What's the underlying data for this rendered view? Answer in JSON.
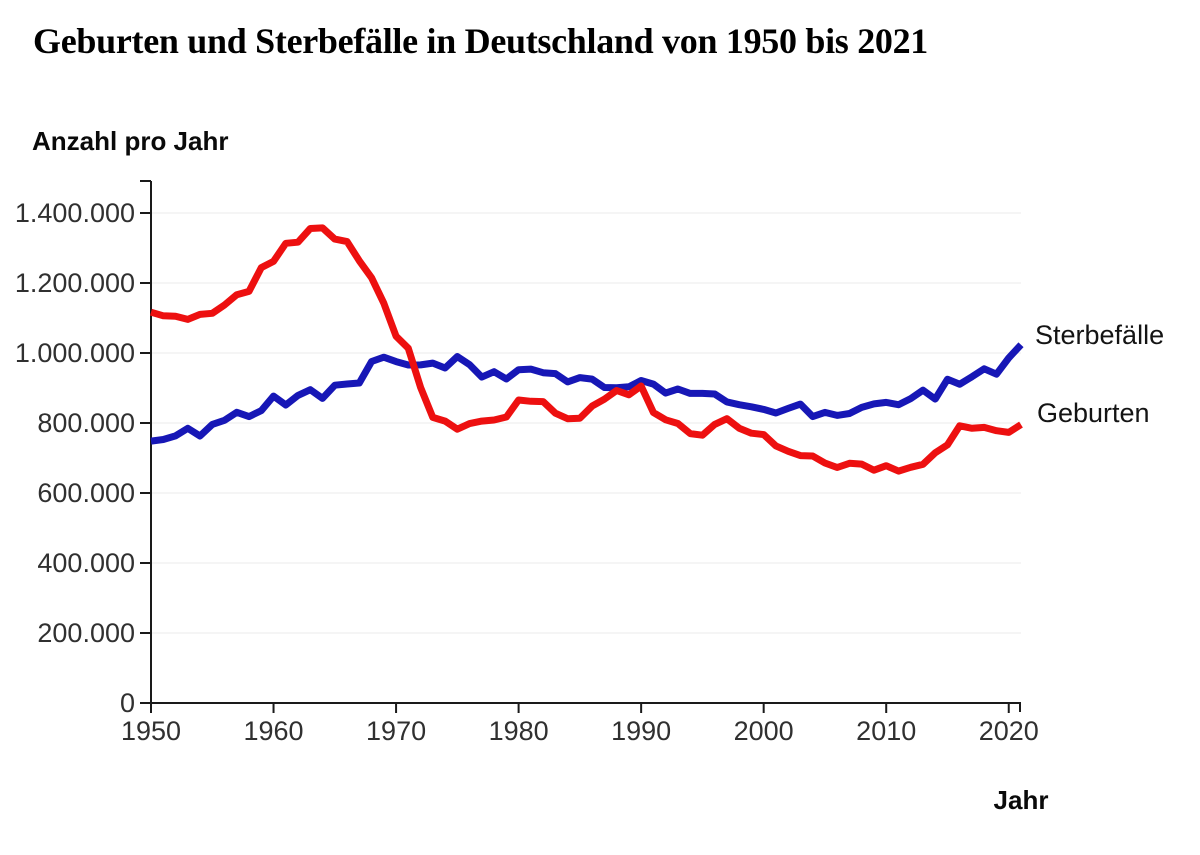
{
  "title": "Geburten und Sterbefälle in Deutschland von 1950 bis 2021",
  "colors": {
    "births": "#ED1010",
    "deaths": "#1717B6",
    "axis": "#1A1A1A",
    "grid": "#EBEBEB",
    "tick_text": "#303030",
    "text": "#000000"
  },
  "chart_data": {
    "type": "line",
    "title": "Geburten und Sterbefälle in Deutschland von 1950 bis 2021",
    "xlabel": "Jahr",
    "ylabel": "Anzahl pro Jahr",
    "xlim": [
      1950,
      2021
    ],
    "ylim": [
      0,
      1400000
    ],
    "grid": "horizontal",
    "legend_position": "labels-at-right-line-ends",
    "x_ticks": [
      {
        "value": 1950,
        "label": "1950"
      },
      {
        "value": 1960,
        "label": "1960"
      },
      {
        "value": 1970,
        "label": "1970"
      },
      {
        "value": 1980,
        "label": "1980"
      },
      {
        "value": 1990,
        "label": "1990"
      },
      {
        "value": 2000,
        "label": "2000"
      },
      {
        "value": 2010,
        "label": "2010"
      },
      {
        "value": 2020,
        "label": "2020"
      }
    ],
    "y_ticks": [
      {
        "value": 0,
        "label": "0"
      },
      {
        "value": 200000,
        "label": "200.000"
      },
      {
        "value": 400000,
        "label": "400.000"
      },
      {
        "value": 600000,
        "label": "600.000"
      },
      {
        "value": 800000,
        "label": "800.000"
      },
      {
        "value": 1000000,
        "label": "1.000.000"
      },
      {
        "value": 1200000,
        "label": "1.200.000"
      },
      {
        "value": 1400000,
        "label": "1.400.000"
      }
    ],
    "x": [
      1950,
      1951,
      1952,
      1953,
      1954,
      1955,
      1956,
      1957,
      1958,
      1959,
      1960,
      1961,
      1962,
      1963,
      1964,
      1965,
      1966,
      1967,
      1968,
      1969,
      1970,
      1971,
      1972,
      1973,
      1974,
      1975,
      1976,
      1977,
      1978,
      1979,
      1980,
      1981,
      1982,
      1983,
      1984,
      1985,
      1986,
      1987,
      1988,
      1989,
      1990,
      1991,
      1992,
      1993,
      1994,
      1995,
      1996,
      1997,
      1998,
      1999,
      2000,
      2001,
      2002,
      2003,
      2004,
      2005,
      2006,
      2007,
      2008,
      2009,
      2010,
      2011,
      2012,
      2013,
      2014,
      2015,
      2016,
      2017,
      2018,
      2019,
      2020,
      2021
    ],
    "series": [
      {
        "name": "Sterbefälle",
        "color_key": "deaths",
        "values": [
          748329,
          752823,
          763209,
          784747,
          762772,
          795938,
          807839,
          830563,
          818251,
          835517,
          876721,
          851321,
          878814,
          895270,
          870310,
          907882,
          911289,
          914417,
          975664,
          988092,
          975505,
          965623,
          965984,
          971258,
          957254,
          989649,
          966677,
          931155,
          946691,
          925809,
          952371,
          954029,
          943832,
          941053,
          917299,
          929649,
          925432,
          901291,
          900627,
          903441,
          921445,
          911245,
          885443,
          897270,
          884588,
          884455,
          882843,
          860389,
          852382,
          846330,
          838797,
          828541,
          841686,
          853946,
          818271,
          830227,
          821627,
          827155,
          844439,
          854544,
          858768,
          852328,
          869582,
          893825,
          868356,
          925200,
          910902,
          932263,
          954874,
          939520,
          985572,
          1023687
        ]
      },
      {
        "name": "Geburten",
        "color_key": "births",
        "values": [
          1116701,
          1106380,
          1105085,
          1095971,
          1110400,
          1113408,
          1137169,
          1166711,
          1175870,
          1243922,
          1261614,
          1313505,
          1316534,
          1355595,
          1357304,
          1325386,
          1318303,
          1263480,
          1214968,
          1142366,
          1047737,
          1013396,
          901657,
          815969,
          805500,
          782310,
          798334,
          805496,
          808619,
          817217,
          865789,
          862100,
          861275,
          827933,
          812292,
          813803,
          848232,
          867969,
          892993,
          880459,
          905675,
          830019,
          809114,
          798447,
          769603,
          765221,
          796013,
          812173,
          785034,
          770744,
          766999,
          734475,
          719250,
          706721,
          705622,
          685795,
          672724,
          684862,
          682514,
          665126,
          677947,
          662685,
          673544,
          682069,
          714927,
          737575,
          792141,
          784901,
          787523,
          778090,
          773144,
          795492
        ]
      }
    ]
  }
}
